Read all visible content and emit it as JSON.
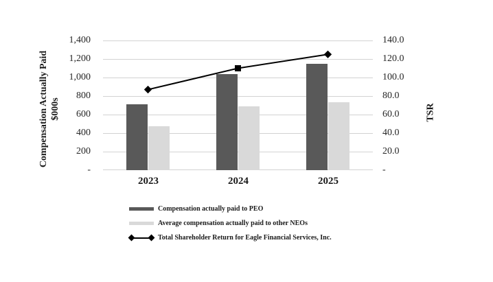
{
  "chart_data": {
    "type": "combo-bar-line",
    "categories": [
      "2023",
      "2024",
      "2025"
    ],
    "bar_series": [
      {
        "name": "Compensation actually paid to PEO",
        "values": [
          710,
          1040,
          1150
        ],
        "color": "#595959"
      },
      {
        "name": "Average compensation actually paid to other NEOs",
        "values": [
          475,
          690,
          735
        ],
        "color": "#d9d9d9"
      }
    ],
    "line_series": {
      "name": "Total Shareholder Return for Eagle Financial Services, Inc.",
      "values": [
        87,
        110,
        125
      ],
      "color": "#000000",
      "marker_shapes": [
        "diamond",
        "square",
        "diamond"
      ]
    },
    "left_axis": {
      "title_line1": "Compensation Actually Paid",
      "title_line2": "$000s",
      "min": 0,
      "max": 1400,
      "step": 200,
      "tick_labels": [
        "1,400",
        "1,200",
        "1,000",
        "800",
        "600",
        "400",
        "200",
        "-"
      ]
    },
    "right_axis": {
      "title": "TSR",
      "min": 0,
      "max": 140,
      "step": 20,
      "tick_labels": [
        "140.0",
        "120.0",
        "100.0",
        "80.0",
        "60.0",
        "40.0",
        "20.0",
        "-"
      ]
    },
    "grid": true,
    "legend_position": "bottom",
    "colors": {
      "gridline": "#d2d2d2",
      "tick_text": "#262626",
      "label_text": "#1a1a1a",
      "background": "#ffffff"
    }
  }
}
